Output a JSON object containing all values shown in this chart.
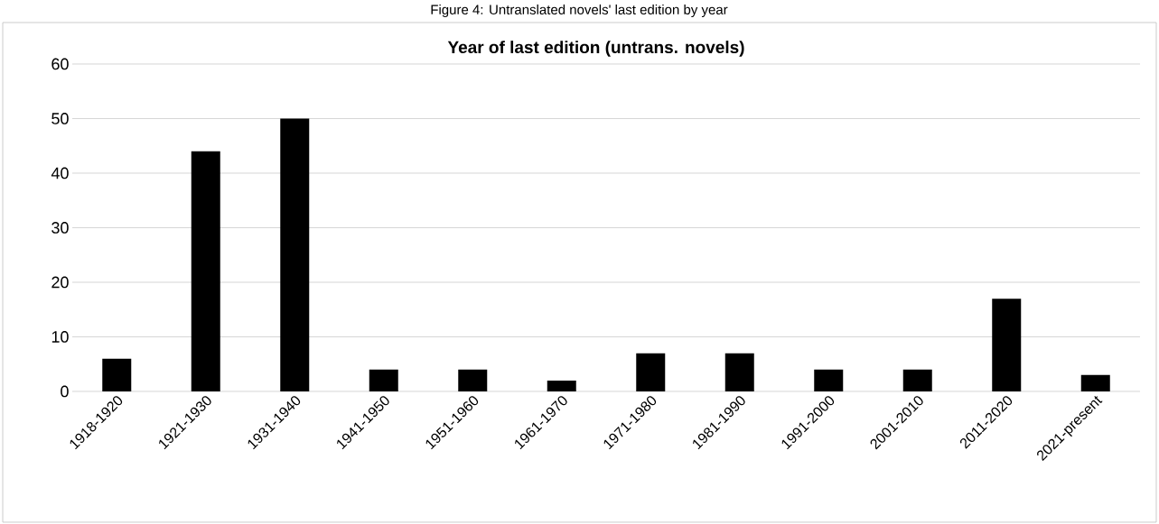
{
  "chart_data": {
    "type": "bar",
    "title": "Figure 4: Untranslated novels' last edition by year",
    "subtitle": "Year of last edition (untrans. novels)",
    "categories": [
      "1918-1920",
      "1921-1930",
      "1931-1940",
      "1941-1950",
      "1951-1960",
      "1961-1970",
      "1971-1980",
      "1981-1990",
      "1991-2000",
      "2001-2010",
      "2011-2020",
      "2021-present"
    ],
    "values": [
      6,
      44,
      50,
      4,
      4,
      2,
      7,
      7,
      4,
      4,
      17,
      3
    ],
    "color": "#000000",
    "ylim": [
      0,
      60
    ],
    "yticks": [
      0,
      10,
      20,
      30,
      40,
      50,
      60
    ],
    "grid": "y"
  }
}
